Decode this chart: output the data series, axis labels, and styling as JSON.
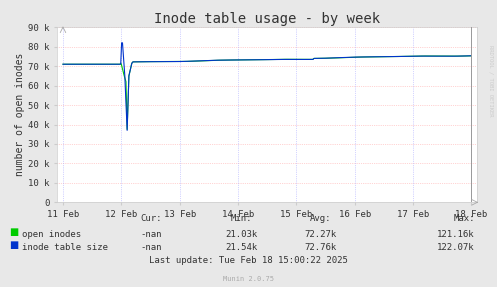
{
  "title": "Inode table usage - by week",
  "ylabel": "number of open inodes",
  "background_color": "#e8e8e8",
  "plot_bg_color": "#ffffff",
  "grid_color_h": "#ffaaaa",
  "grid_color_v": "#aaaaff",
  "x_labels": [
    "11 Feb",
    "12 Feb",
    "13 Feb",
    "14 Feb",
    "15 Feb",
    "16 Feb",
    "17 Feb",
    "18 Feb"
  ],
  "ylim": [
    0,
    90000
  ],
  "yticks": [
    0,
    10000,
    20000,
    30000,
    40000,
    50000,
    60000,
    70000,
    80000,
    90000
  ],
  "yticklabels": [
    "0",
    "10 k",
    "20 k",
    "30 k",
    "40 k",
    "50 k",
    "60 k",
    "70 k",
    "80 k",
    "90 k"
  ],
  "open_inodes_color": "#00cc00",
  "inode_table_color": "#0033cc",
  "stats_cur": [
    "-nan",
    "-nan"
  ],
  "stats_min": [
    "21.03k",
    "21.54k"
  ],
  "stats_avg": [
    "72.27k",
    "72.76k"
  ],
  "stats_max": [
    "121.16k",
    "122.07k"
  ],
  "last_update": "Last update: Tue Feb 18 15:00:22 2025",
  "munin_version": "Munin 2.0.75",
  "rrdtool_label": "RRDTOOL / TOBI OETIKER",
  "title_fontsize": 10,
  "axis_label_fontsize": 7,
  "tick_fontsize": 6.5,
  "stats_fontsize": 6.5,
  "munin_fontsize": 5
}
